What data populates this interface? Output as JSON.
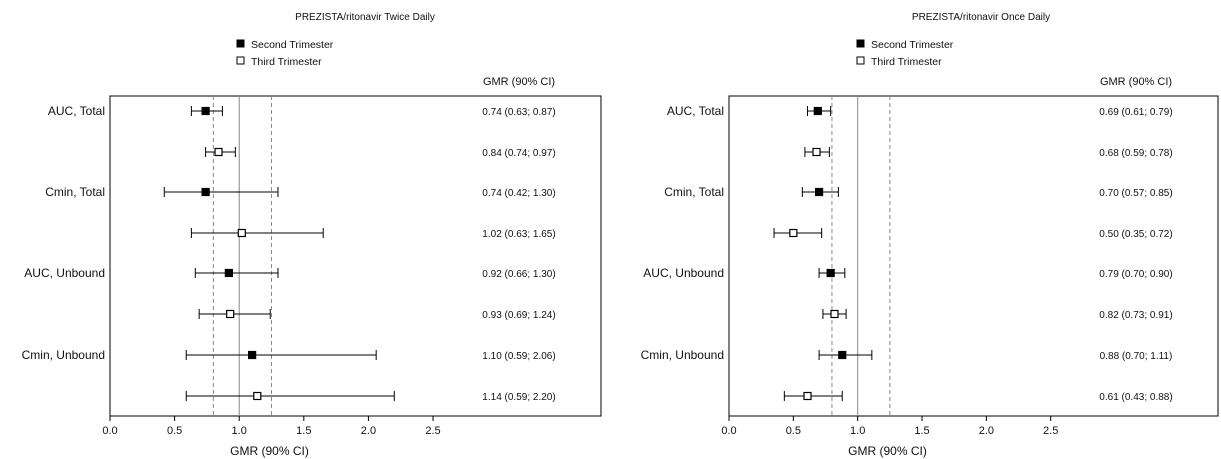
{
  "chart_data": [
    {
      "type": "forest",
      "title": "PREZISTA/ritonavir Twice Daily",
      "xlabel": "GMR (90% CI)",
      "ci_header": "GMR (90% CI)",
      "xlim": [
        0.0,
        3.8
      ],
      "xticks": [
        "0.0",
        "0.5",
        "1.0",
        "1.5",
        "2.0",
        "2.5"
      ],
      "reference_line": 1.0,
      "bound_lines": [
        0.8,
        1.25
      ],
      "legend": [
        {
          "marker": "filled-square",
          "label": "Second Trimester"
        },
        {
          "marker": "open-square",
          "label": "Third Trimester"
        }
      ],
      "row_labels": [
        "AUC, Total",
        "Cmin, Total",
        "AUC, Unbound",
        "Cmin, Unbound"
      ],
      "rows": [
        {
          "series": "Second Trimester",
          "est": 0.74,
          "lo": 0.63,
          "hi": 0.87,
          "text": "0.74 (0.63; 0.87)"
        },
        {
          "series": "Third Trimester",
          "est": 0.84,
          "lo": 0.74,
          "hi": 0.97,
          "text": "0.84 (0.74; 0.97)"
        },
        {
          "series": "Second Trimester",
          "est": 0.74,
          "lo": 0.42,
          "hi": 1.3,
          "text": "0.74 (0.42; 1.30)"
        },
        {
          "series": "Third Trimester",
          "est": 1.02,
          "lo": 0.63,
          "hi": 1.65,
          "text": "1.02 (0.63; 1.65)"
        },
        {
          "series": "Second Trimester",
          "est": 0.92,
          "lo": 0.66,
          "hi": 1.3,
          "text": "0.92 (0.66; 1.30)"
        },
        {
          "series": "Third Trimester",
          "est": 0.93,
          "lo": 0.69,
          "hi": 1.24,
          "text": "0.93 (0.69; 1.24)"
        },
        {
          "series": "Second Trimester",
          "est": 1.1,
          "lo": 0.59,
          "hi": 2.06,
          "text": "1.10 (0.59; 2.06)"
        },
        {
          "series": "Third Trimester",
          "est": 1.14,
          "lo": 0.59,
          "hi": 2.2,
          "text": "1.14 (0.59; 2.20)"
        }
      ]
    },
    {
      "type": "forest",
      "title": "PREZISTA/ritonavir Once Daily",
      "xlabel": "GMR (90% CI)",
      "ci_header": "GMR (90% CI)",
      "xlim": [
        0.0,
        3.8
      ],
      "xticks": [
        "0.0",
        "0.5",
        "1.0",
        "1.5",
        "2.0",
        "2.5"
      ],
      "reference_line": 1.0,
      "bound_lines": [
        0.8,
        1.25
      ],
      "legend": [
        {
          "marker": "filled-square",
          "label": "Second Trimester"
        },
        {
          "marker": "open-square",
          "label": "Third Trimester"
        }
      ],
      "row_labels": [
        "AUC, Total",
        "Cmin, Total",
        "AUC, Unbound",
        "Cmin, Unbound"
      ],
      "rows": [
        {
          "series": "Second Trimester",
          "est": 0.69,
          "lo": 0.61,
          "hi": 0.79,
          "text": "0.69 (0.61; 0.79)"
        },
        {
          "series": "Third Trimester",
          "est": 0.68,
          "lo": 0.59,
          "hi": 0.78,
          "text": "0.68 (0.59; 0.78)"
        },
        {
          "series": "Second Trimester",
          "est": 0.7,
          "lo": 0.57,
          "hi": 0.85,
          "text": "0.70 (0.57; 0.85)"
        },
        {
          "series": "Third Trimester",
          "est": 0.5,
          "lo": 0.35,
          "hi": 0.72,
          "text": "0.50 (0.35; 0.72)"
        },
        {
          "series": "Second Trimester",
          "est": 0.79,
          "lo": 0.7,
          "hi": 0.9,
          "text": "0.79 (0.70; 0.90)"
        },
        {
          "series": "Third Trimester",
          "est": 0.82,
          "lo": 0.73,
          "hi": 0.91,
          "text": "0.82 (0.73; 0.91)"
        },
        {
          "series": "Second Trimester",
          "est": 0.88,
          "lo": 0.7,
          "hi": 1.11,
          "text": "0.88 (0.70; 1.11)"
        },
        {
          "series": "Third Trimester",
          "est": 0.61,
          "lo": 0.43,
          "hi": 0.88,
          "text": "0.61 (0.43; 0.88)"
        }
      ]
    }
  ]
}
